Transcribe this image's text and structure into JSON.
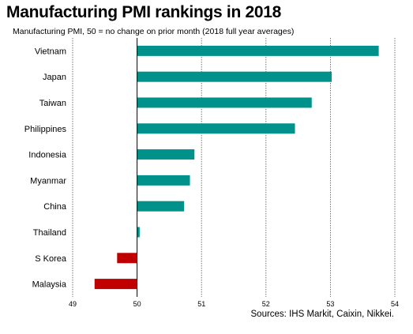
{
  "title": "Manufacturing PMI rankings in 2018",
  "subtitle": "Manufacturing  PMI, 50 = no change on prior month (2018 full year averages)",
  "source": "Sources: IHS Markit, Caixin, Nikkei.",
  "colors": {
    "positive": "#00928a",
    "negative": "#c00000",
    "grid": "#555555"
  },
  "chart_data": {
    "type": "bar",
    "orientation": "horizontal",
    "baseline": 50,
    "categories": [
      "Vietnam",
      "Japan",
      "Taiwan",
      "Philippines",
      "Indonesia",
      "Myanmar",
      "China",
      "Thailand",
      "S Korea",
      "Malaysia"
    ],
    "values": [
      53.75,
      53.02,
      52.71,
      52.45,
      50.89,
      50.82,
      50.73,
      50.04,
      49.69,
      49.34
    ],
    "xlim": [
      49,
      54
    ],
    "xticks": [
      49,
      50,
      51,
      52,
      53,
      54
    ],
    "grid": "vertical-dotted"
  }
}
